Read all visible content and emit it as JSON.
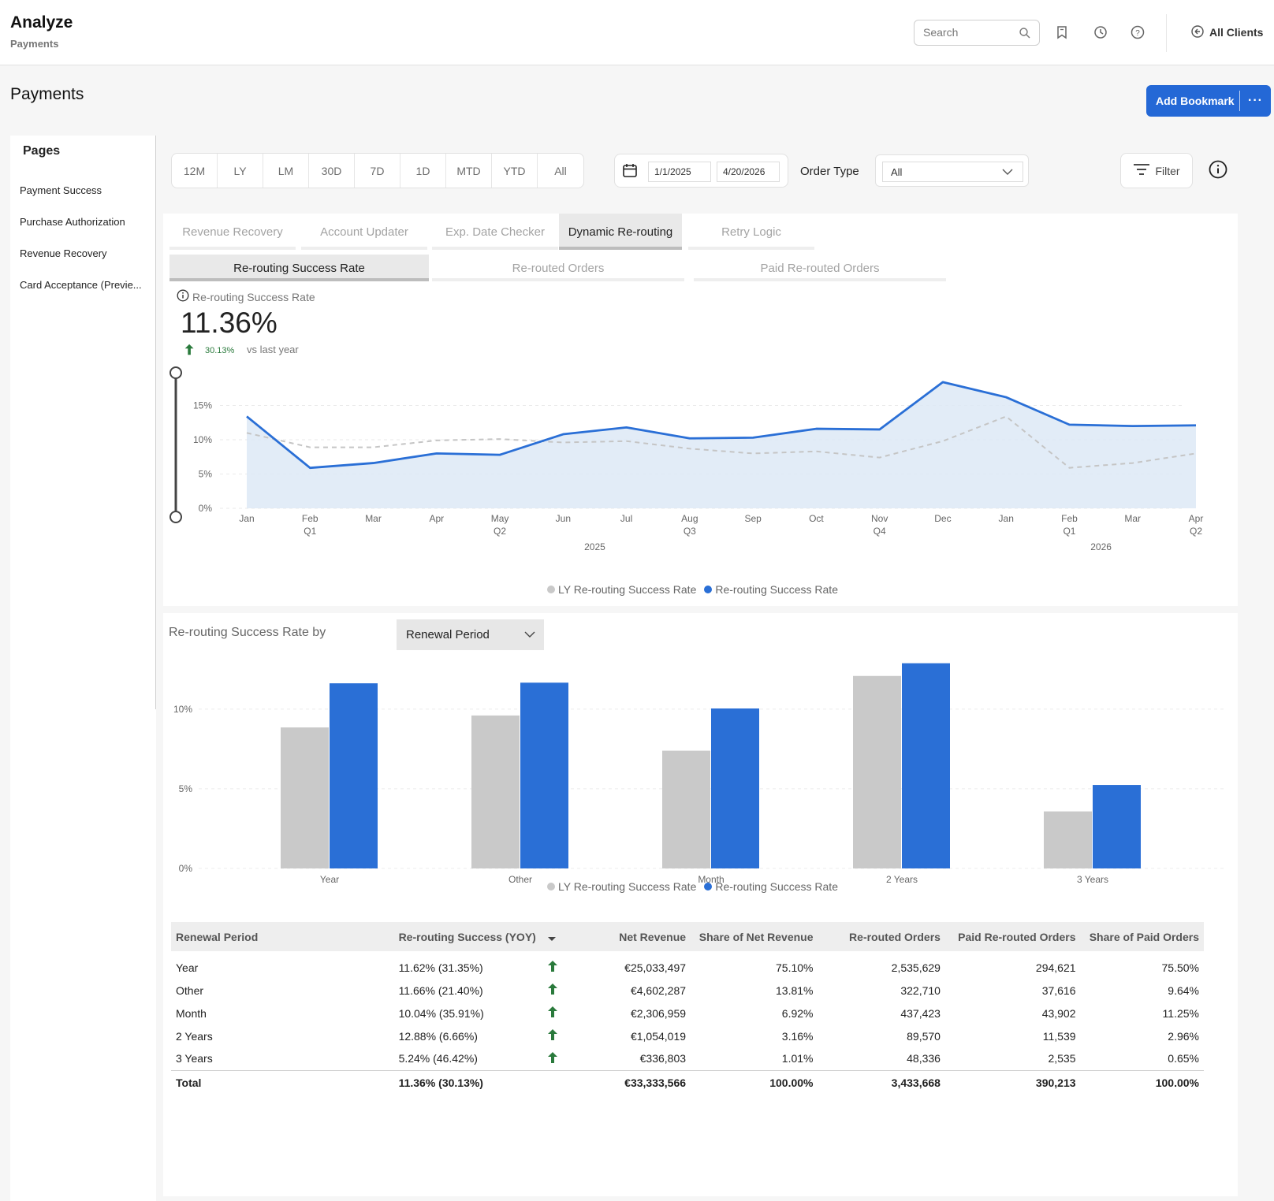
{
  "header": {
    "app_title": "Analyze",
    "app_subtitle": "Payments",
    "search_placeholder": "Search",
    "clients_label": "All Clients"
  },
  "page": {
    "title": "Payments",
    "add_bookmark_label": "Add Bookmark",
    "more_label": "···"
  },
  "sidebar": {
    "title": "Pages",
    "items": [
      {
        "label": "Payment Success"
      },
      {
        "label": "Purchase Authorization"
      },
      {
        "label": "Revenue Recovery"
      },
      {
        "label": "Card Acceptance (Previe..."
      }
    ]
  },
  "toolbar": {
    "ranges": [
      "12M",
      "LY",
      "LM",
      "30D",
      "7D",
      "1D",
      "MTD",
      "YTD",
      "All"
    ],
    "start_date": "1/1/2025",
    "end_date": "4/20/2026",
    "order_type_label": "Order Type",
    "order_type_value": "All",
    "filter_label": "Filter"
  },
  "tabs": [
    {
      "label": "Revenue Recovery",
      "active": false
    },
    {
      "label": "Account Updater",
      "active": false
    },
    {
      "label": "Exp. Date Checker",
      "active": false
    },
    {
      "label": "Dynamic Re-routing",
      "active": true
    },
    {
      "label": "Retry Logic",
      "active": false
    }
  ],
  "subtabs": [
    {
      "label": "Re-routing Success Rate",
      "active": true
    },
    {
      "label": "Re-routed Orders",
      "active": false
    },
    {
      "label": "Paid Re-routed Orders",
      "active": false
    }
  ],
  "kpi": {
    "label": "Re-routing Success Rate",
    "value": "11.36%",
    "delta": "30.13%",
    "vs": "vs last year"
  },
  "colors": {
    "current": "#2a6fd6",
    "last_year": "#c9c9c9",
    "area": "#dde9f6",
    "accent": "#2468d6",
    "positive": "#2a7a3c"
  },
  "chart_data": [
    {
      "type": "area",
      "x": [
        "Jan",
        "Feb",
        "Mar",
        "Apr",
        "May",
        "Jun",
        "Jul",
        "Aug",
        "Sep",
        "Oct",
        "Nov",
        "Dec",
        "Jan",
        "Feb",
        "Mar",
        "Apr"
      ],
      "x_sublabels": [
        "",
        "Q1",
        "",
        "",
        "Q2",
        "",
        "",
        "Q3",
        "",
        "",
        "Q4",
        "",
        "",
        "Q1",
        "",
        "Q2"
      ],
      "year_labels": [
        {
          "label": "2025",
          "at": 5.5
        },
        {
          "label": "2026",
          "at": 13.5
        }
      ],
      "series": [
        {
          "name": "LY Re-routing Success Rate",
          "values": [
            11.0,
            8.9,
            8.9,
            9.9,
            10.1,
            9.6,
            9.8,
            8.7,
            8.0,
            8.3,
            7.4,
            9.8,
            13.4,
            5.9,
            6.6,
            8.0
          ],
          "style": "dashed"
        },
        {
          "name": "Re-routing Success Rate",
          "values": [
            13.4,
            5.9,
            6.6,
            8.0,
            7.8,
            10.8,
            11.8,
            10.2,
            10.3,
            11.6,
            11.5,
            18.4,
            16.2,
            12.2,
            12.0,
            12.1
          ]
        }
      ],
      "yticks": [
        "0%",
        "5%",
        "10%",
        "15%"
      ],
      "ylim": [
        0,
        20
      ],
      "legend": "bottom"
    },
    {
      "type": "bar",
      "title": "Re-routing Success Rate by",
      "categories": [
        "Year",
        "Other",
        "Month",
        "2 Years",
        "3 Years"
      ],
      "series": [
        {
          "name": "LY Re-routing Success Rate",
          "values": [
            8.85,
            9.6,
            7.39,
            12.08,
            3.58
          ]
        },
        {
          "name": "Re-routing Success Rate",
          "values": [
            11.62,
            11.66,
            10.04,
            12.88,
            5.24
          ]
        }
      ],
      "yticks": [
        "0%",
        "5%",
        "10%"
      ],
      "ylim": [
        0,
        13.8
      ],
      "legend": "bottom"
    }
  ],
  "breakdown": {
    "label": "Re-routing Success Rate by",
    "select_value": "Renewal Period"
  },
  "legend": {
    "ly": "LY Re-routing Success Rate",
    "cur": "Re-routing Success Rate"
  },
  "table": {
    "columns": [
      "Renewal Period",
      "Re-routing Success (YOY)",
      "Net Revenue",
      "Share of Net Revenue",
      "Re-routed Orders",
      "Paid Re-routed Orders",
      "Share of Paid Orders"
    ],
    "rows": [
      [
        "Year",
        "11.62% (31.35%)",
        "€25,033,497",
        "75.10%",
        "2,535,629",
        "294,621",
        "75.50%"
      ],
      [
        "Other",
        "11.66% (21.40%)",
        "€4,602,287",
        "13.81%",
        "322,710",
        "37,616",
        "9.64%"
      ],
      [
        "Month",
        "10.04% (35.91%)",
        "€2,306,959",
        "6.92%",
        "437,423",
        "43,902",
        "11.25%"
      ],
      [
        "2 Years",
        "12.88% (6.66%)",
        "€1,054,019",
        "3.16%",
        "89,570",
        "11,539",
        "2.96%"
      ],
      [
        "3 Years",
        "5.24% (46.42%)",
        "€336,803",
        "1.01%",
        "48,336",
        "2,535",
        "0.65%"
      ]
    ],
    "total": [
      "Total",
      "11.36% (30.13%)",
      "€33,333,566",
      "100.00%",
      "3,433,668",
      "390,213",
      "100.00%"
    ]
  }
}
